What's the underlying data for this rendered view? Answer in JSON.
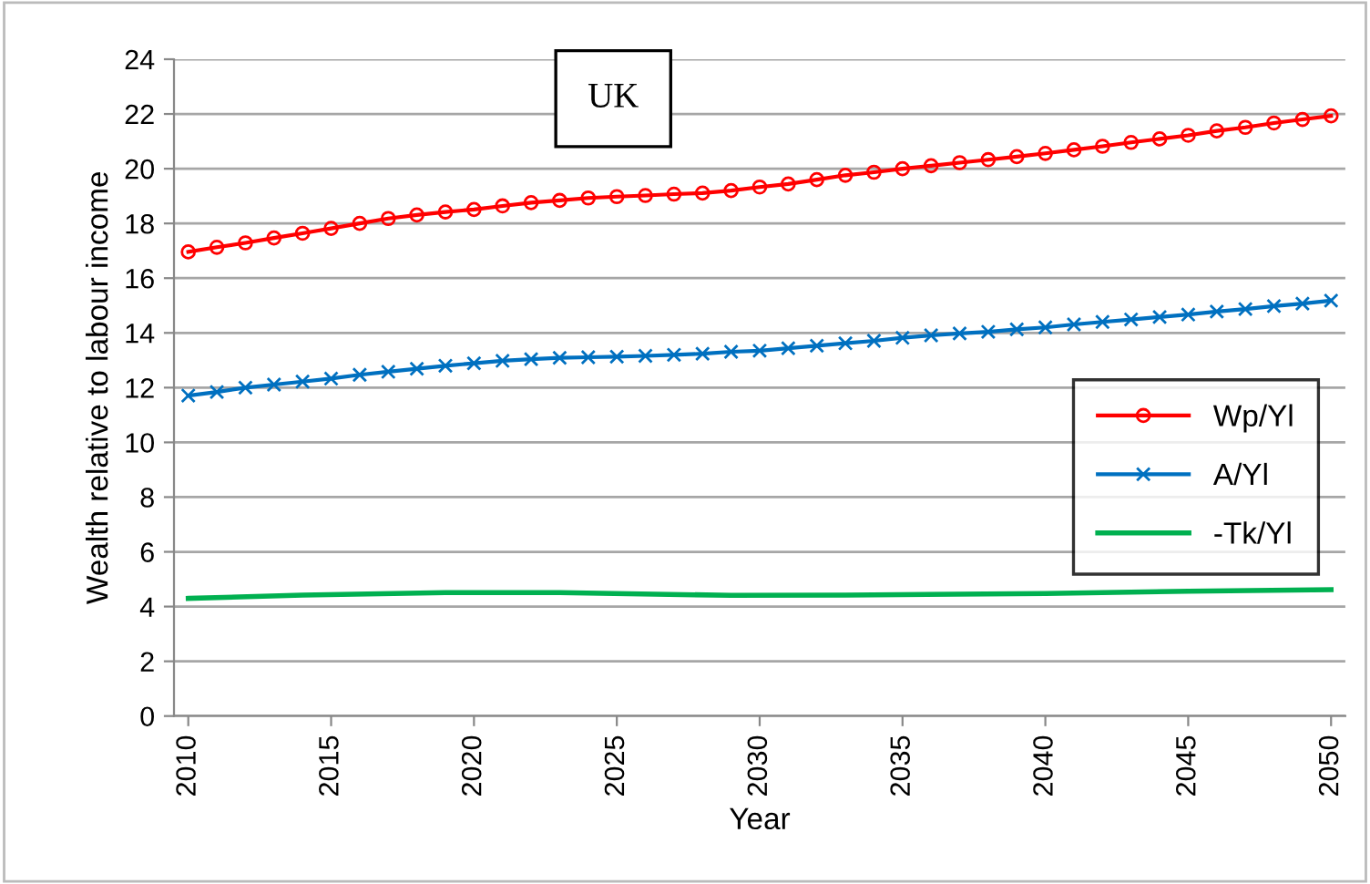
{
  "chart_data": {
    "type": "line",
    "x": [
      2010,
      2011,
      2012,
      2013,
      2014,
      2015,
      2016,
      2017,
      2018,
      2019,
      2020,
      2021,
      2022,
      2023,
      2024,
      2025,
      2026,
      2027,
      2028,
      2029,
      2030,
      2031,
      2032,
      2033,
      2034,
      2035,
      2036,
      2037,
      2038,
      2039,
      2040,
      2041,
      2042,
      2043,
      2044,
      2045,
      2046,
      2047,
      2048,
      2049,
      2050
    ],
    "series": [
      {
        "name": "Wp/Yl",
        "color": "#ff0000",
        "marker": "circle",
        "values": [
          16.96,
          17.13,
          17.29,
          17.47,
          17.64,
          17.82,
          18.0,
          18.18,
          18.31,
          18.42,
          18.51,
          18.64,
          18.76,
          18.84,
          18.93,
          18.98,
          19.02,
          19.07,
          19.11,
          19.2,
          19.33,
          19.44,
          19.6,
          19.76,
          19.87,
          20.0,
          20.11,
          20.22,
          20.33,
          20.44,
          20.56,
          20.69,
          20.82,
          20.96,
          21.09,
          21.22,
          21.38,
          21.51,
          21.67,
          21.8,
          21.93
        ]
      },
      {
        "name": "A/Yl",
        "color": "#0070c0",
        "marker": "cross",
        "values": [
          11.71,
          11.84,
          12.0,
          12.11,
          12.22,
          12.33,
          12.47,
          12.58,
          12.69,
          12.8,
          12.89,
          12.98,
          13.04,
          13.09,
          13.11,
          13.13,
          13.16,
          13.2,
          13.24,
          13.31,
          13.35,
          13.44,
          13.53,
          13.62,
          13.71,
          13.82,
          13.91,
          13.98,
          14.04,
          14.13,
          14.2,
          14.31,
          14.4,
          14.49,
          14.58,
          14.67,
          14.78,
          14.87,
          14.98,
          15.07,
          15.18
        ]
      },
      {
        "name": "-Tk/Yl",
        "color": "#00b050",
        "marker": "none",
        "x": [
          2010,
          2014,
          2019,
          2023,
          2029,
          2033,
          2040,
          2045,
          2050
        ],
        "values": [
          4.3,
          4.42,
          4.51,
          4.51,
          4.41,
          4.42,
          4.48,
          4.56,
          4.62
        ]
      }
    ],
    "xlabel": "Year",
    "ylabel": "Wealth relative to labour income",
    "annotations": [
      "UK"
    ],
    "xlim": [
      2009.5,
      2050.5
    ],
    "xticks": [
      2010,
      2015,
      2020,
      2025,
      2030,
      2035,
      2040,
      2045,
      2050
    ],
    "ylim": [
      0,
      24
    ],
    "yticks": [
      0,
      2,
      4,
      6,
      8,
      10,
      12,
      14,
      16,
      18,
      20,
      22,
      24
    ],
    "grid": "y",
    "legend": "right",
    "line_style": "solid"
  }
}
